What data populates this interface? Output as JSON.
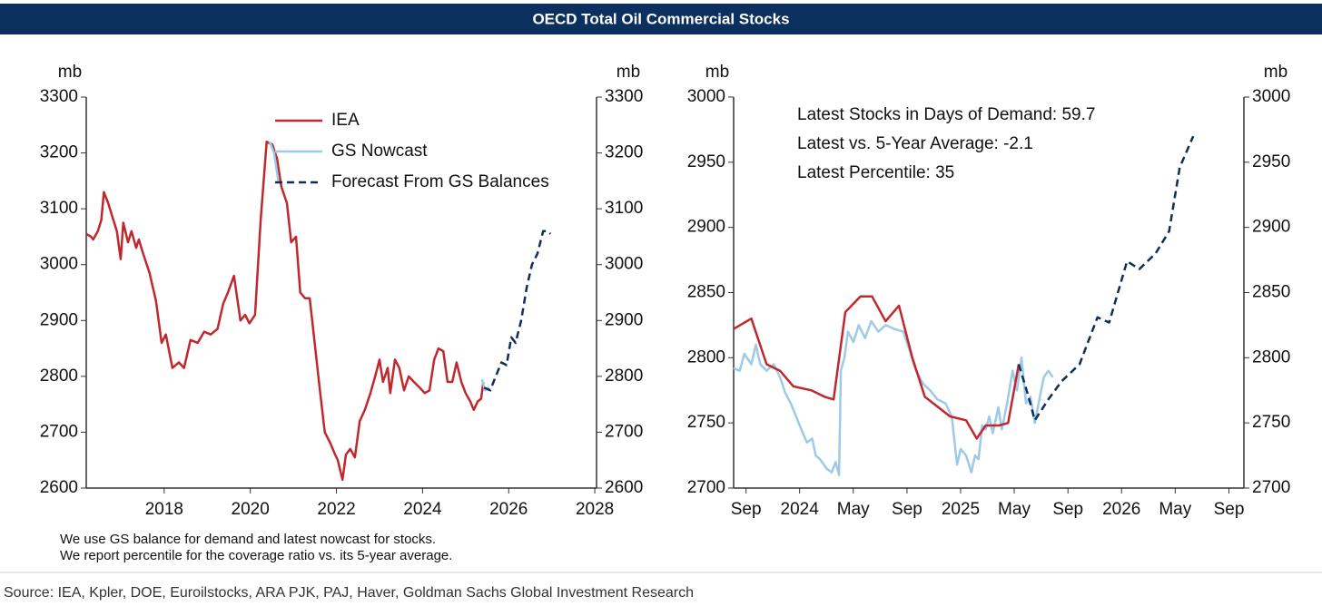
{
  "title": "OECD Total Oil Commercial Stocks",
  "notes": [
    "We use GS balance for demand and latest nowcast for stocks.",
    "We report percentile for the coverage ratio vs. its 5-year average."
  ],
  "source": "Source: IEA, Kpler, DOE, Euroilstocks, ARA PJK, PAJ, Haver, Goldman Sachs Global Investment Research",
  "chart_data": [
    {
      "type": "line",
      "y_label": "mb",
      "y2_label": "mb",
      "legend": "upper center",
      "xlim": [
        2016.19,
        2028.04
      ],
      "xticks": [
        2018,
        2020,
        2022,
        2024,
        2026,
        2028
      ],
      "ylim": [
        2600,
        3300
      ],
      "yticks": [
        2600,
        2700,
        2800,
        2900,
        3000,
        3100,
        3200,
        3300
      ],
      "y2lim": [
        2600,
        3300
      ],
      "y2ticks": [
        2600,
        2700,
        2800,
        2900,
        3000,
        3100,
        3200,
        3300
      ],
      "series": [
        {
          "name": "IEA",
          "color": "#c0282d",
          "style": "solid",
          "x": [
            2016.19,
            2016.3,
            2016.35,
            2016.46,
            2016.54,
            2016.6,
            2016.7,
            2016.8,
            2016.9,
            2016.99,
            2017.05,
            2017.16,
            2017.24,
            2017.35,
            2017.41,
            2017.51,
            2017.66,
            2017.81,
            2017.94,
            2018.04,
            2018.19,
            2018.34,
            2018.46,
            2018.61,
            2018.78,
            2018.93,
            2019.08,
            2019.24,
            2019.37,
            2019.48,
            2019.62,
            2019.77,
            2019.88,
            2019.98,
            2020.11,
            2020.24,
            2020.38,
            2020.51,
            2020.62,
            2020.72,
            2020.85,
            2020.95,
            2021.06,
            2021.16,
            2021.27,
            2021.38,
            2021.48,
            2021.61,
            2021.73,
            2021.86,
            2021.97,
            2022.03,
            2022.14,
            2022.22,
            2022.32,
            2022.43,
            2022.54,
            2022.66,
            2022.79,
            2022.9,
            2023.0,
            2023.08,
            2023.19,
            2023.25,
            2023.36,
            2023.46,
            2023.57,
            2023.68,
            2023.8,
            2023.93,
            2024.05,
            2024.16,
            2024.27,
            2024.37,
            2024.48,
            2024.58,
            2024.69,
            2024.79,
            2024.9,
            2025.0,
            2025.11,
            2025.19,
            2025.28,
            2025.36,
            2025.41
          ],
          "values": [
            3055,
            3050,
            3045,
            3060,
            3080,
            3130,
            3110,
            3085,
            3060,
            3010,
            3075,
            3040,
            3060,
            3030,
            3045,
            3020,
            2985,
            2935,
            2860,
            2875,
            2815,
            2825,
            2815,
            2865,
            2860,
            2880,
            2875,
            2885,
            2930,
            2950,
            2980,
            2900,
            2910,
            2895,
            2910,
            3080,
            3220,
            3215,
            3190,
            3140,
            3110,
            3040,
            3050,
            2950,
            2940,
            2940,
            2870,
            2780,
            2700,
            2680,
            2660,
            2650,
            2615,
            2660,
            2670,
            2655,
            2720,
            2740,
            2770,
            2800,
            2830,
            2790,
            2815,
            2770,
            2830,
            2815,
            2775,
            2800,
            2790,
            2780,
            2770,
            2775,
            2830,
            2850,
            2845,
            2790,
            2790,
            2825,
            2790,
            2770,
            2755,
            2740,
            2755,
            2760,
            2790
          ]
        },
        {
          "name": "GS Nowcast",
          "color": "#9ecae9",
          "style": "solid",
          "x": [
            2020.45,
            2020.55,
            2020.65,
            2020.7,
            2025.38,
            2025.45,
            2025.55
          ],
          "values": [
            3220,
            3200,
            3150,
            null,
            2795,
            2775,
            2780
          ]
        },
        {
          "name": "Forecast From GS Balances",
          "color": "#0d2f5a",
          "style": "dashed",
          "x": [
            2025.43,
            2025.57,
            2025.7,
            2025.83,
            2025.95,
            2026.06,
            2026.16,
            2026.29,
            2026.42,
            2026.54,
            2026.67,
            2026.8,
            2026.9,
            2026.97
          ],
          "values": [
            2780,
            2775,
            2800,
            2825,
            2820,
            2870,
            2860,
            2900,
            2960,
            3000,
            3020,
            3060,
            3060,
            3055
          ]
        }
      ]
    },
    {
      "type": "line",
      "y_label": "mb",
      "y2_label": "mb",
      "annotations": [
        "Latest Stocks in Days of Demand: 59.7",
        "Latest vs. 5-Year Average: -2.1",
        "Latest Percentile: 35"
      ],
      "xlim": [
        2023.59,
        2026.76
      ],
      "xticks": [
        {
          "value": 2023.667,
          "label": "Sep"
        },
        {
          "value": 2024,
          "label": "2024"
        },
        {
          "value": 2024.333,
          "label": "May"
        },
        {
          "value": 2024.667,
          "label": "Sep"
        },
        {
          "value": 2025,
          "label": "2025"
        },
        {
          "value": 2025.333,
          "label": "May"
        },
        {
          "value": 2025.667,
          "label": "Sep"
        },
        {
          "value": 2026,
          "label": "2026"
        },
        {
          "value": 2026.333,
          "label": "May"
        },
        {
          "value": 2026.667,
          "label": "Sep"
        }
      ],
      "ylim": [
        2700,
        3000
      ],
      "yticks": [
        2700,
        2750,
        2800,
        2850,
        2900,
        2950,
        3000
      ],
      "y2lim": [
        2700,
        3000
      ],
      "y2ticks": [
        2700,
        2750,
        2800,
        2850,
        2900,
        2950,
        3000
      ],
      "series": [
        {
          "name": "GS Nowcast",
          "color": "#9ecae9",
          "style": "solid",
          "x": [
            2023.589,
            2023.628,
            2023.656,
            2023.7,
            2023.728,
            2023.756,
            2023.795,
            2023.839,
            2023.878,
            2023.911,
            2023.945,
            2023.978,
            2024.011,
            2024.045,
            2024.078,
            2024.1,
            2024.128,
            2024.167,
            2024.2,
            2024.223,
            2024.245,
            2024.256,
            2024.278,
            2024.3,
            2024.334,
            2024.367,
            2024.406,
            2024.445,
            2024.489,
            2024.534,
            2024.589,
            2024.645,
            2024.684,
            2024.723,
            2024.767,
            2024.811,
            2024.856,
            2024.906,
            2024.945,
            2024.978,
            2025.0,
            2025.034,
            2025.067,
            2025.089,
            2025.111,
            2025.134,
            2025.156,
            2025.178,
            2025.2,
            2025.234,
            2025.256,
            2025.289,
            2025.323,
            2025.35,
            2025.378,
            2025.406,
            2025.434,
            2025.461,
            2025.489,
            2025.517,
            2025.545,
            2025.573
          ],
          "values": [
            2792,
            2790,
            2803,
            2795,
            2810,
            2795,
            2790,
            2795,
            2785,
            2773,
            2765,
            2755,
            2745,
            2735,
            2738,
            2725,
            2722,
            2715,
            2712,
            2720,
            2710,
            2790,
            2800,
            2820,
            2812,
            2825,
            2815,
            2828,
            2820,
            2825,
            2822,
            2820,
            2805,
            2790,
            2780,
            2775,
            2768,
            2765,
            2755,
            2718,
            2730,
            2725,
            2712,
            2725,
            2722,
            2748,
            2745,
            2755,
            2742,
            2762,
            2745,
            2765,
            2790,
            2775,
            2800,
            2765,
            2770,
            2750,
            2768,
            2785,
            2790,
            2785
          ]
        },
        {
          "name": "IEA",
          "color": "#c0282d",
          "style": "solid",
          "x": [
            2023.589,
            2023.7,
            2023.795,
            2023.878,
            2023.961,
            2024.073,
            2024.156,
            2024.211,
            2024.284,
            2024.378,
            2024.45,
            2024.534,
            2024.617,
            2024.7,
            2024.778,
            2024.934,
            2025.034,
            2025.1,
            2025.156,
            2025.239,
            2025.295,
            2025.361
          ],
          "values": [
            2822,
            2830,
            2795,
            2790,
            2778,
            2775,
            2770,
            2768,
            2835,
            2847,
            2847,
            2828,
            2840,
            2800,
            2770,
            2755,
            2752,
            2738,
            2748,
            2748,
            2750,
            2795
          ]
        },
        {
          "name": "Forecast From GS Balances",
          "color": "#0d2f5a",
          "style": "dashed",
          "x": [
            2025.361,
            2025.422,
            2025.461,
            2025.545,
            2025.628,
            2025.739,
            2025.85,
            2025.923,
            2026.034,
            2026.111,
            2026.211,
            2026.295,
            2026.361,
            2026.445
          ],
          "values": [
            2795,
            2770,
            2752,
            2768,
            2782,
            2795,
            2831,
            2827,
            2874,
            2868,
            2880,
            2897,
            2946,
            2970
          ]
        }
      ]
    }
  ]
}
